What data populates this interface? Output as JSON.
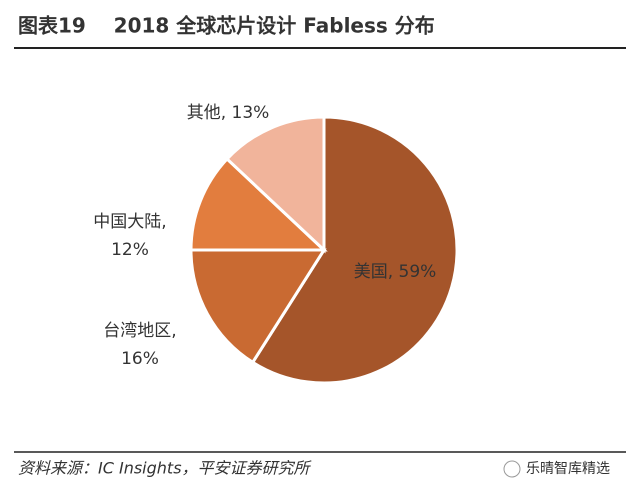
{
  "chart_data": {
    "type": "pie",
    "title": "图表19    2018 全球芯片设计 Fabless 分布",
    "values": [
      59,
      16,
      12,
      13
    ],
    "value_labels": [
      "美国, 59%",
      "台湾地区, 16%",
      "中国大陆, 12%",
      "其他, 13%"
    ],
    "colors": [
      "#a5552a",
      "#c96a32",
      "#e27d3e",
      "#f1b49b"
    ]
  },
  "source": "资料来源：IC Insights，平安证券研究所",
  "watermark": "乐晴智库精选"
}
